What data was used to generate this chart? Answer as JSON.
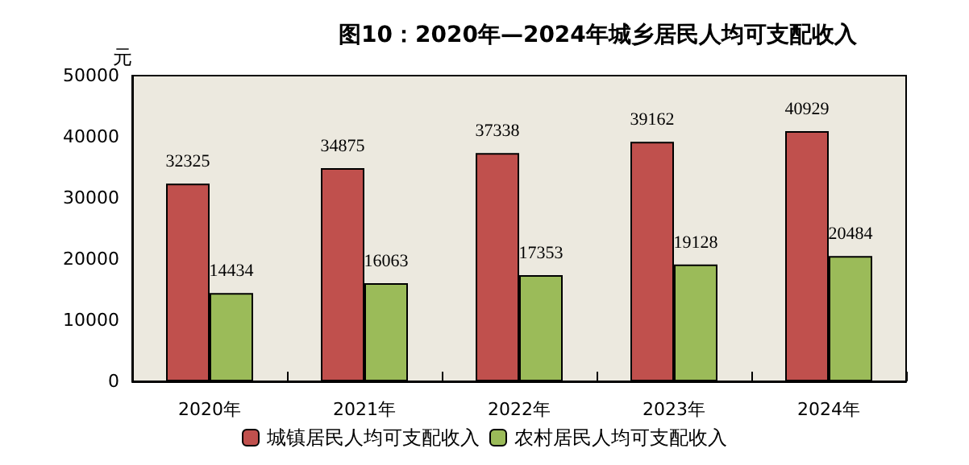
{
  "chart_data": {
    "type": "bar",
    "title": "图10：2020年—2024年城乡居民人均可支配收入",
    "ylabel": "元",
    "categories": [
      "2020年",
      "2021年",
      "2022年",
      "2023年",
      "2024年"
    ],
    "series": [
      {
        "name": "城镇居民人均可支配收入",
        "color": "#c0504d",
        "values": [
          32325,
          34875,
          37338,
          39162,
          40929
        ]
      },
      {
        "name": "农村居民人均可支配收入",
        "color": "#9bbb59",
        "values": [
          14434,
          16063,
          17353,
          19128,
          20484
        ]
      }
    ],
    "ylim": [
      0,
      50000
    ],
    "yticks": [
      0,
      10000,
      20000,
      30000,
      40000,
      50000
    ],
    "grid": false,
    "legend": "bottom",
    "data_labels": true
  }
}
